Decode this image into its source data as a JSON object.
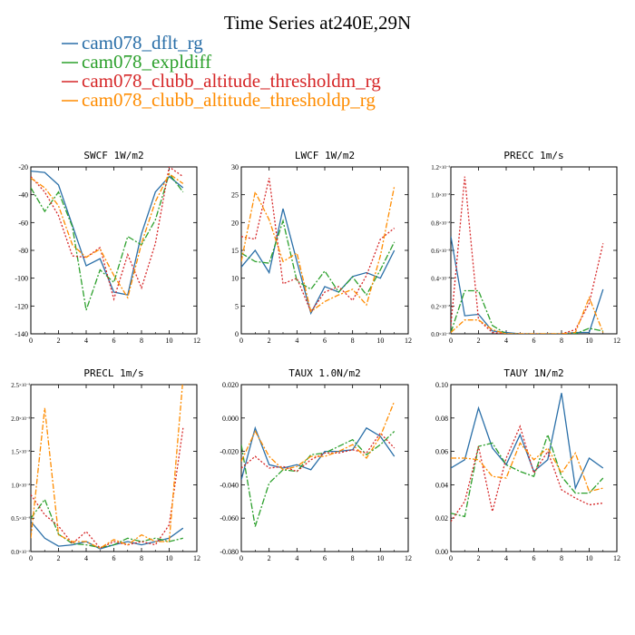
{
  "title": "Time Series at240E,29N",
  "legend": [
    {
      "label": "cam078_dflt_rg",
      "color": "#2a6fa8"
    },
    {
      "label": "cam078_expldiff",
      "color": "#2ca02c"
    },
    {
      "label": "cam078_clubb_altitude_thresholdm_rg",
      "color": "#d62728"
    },
    {
      "label": "cam078_clubb_altitude_thresholdp_rg",
      "color": "#ff8c00"
    }
  ],
  "chart_data": [
    {
      "type": "line",
      "title": "SWCF   1W/m2",
      "x": [
        0,
        1,
        2,
        3,
        4,
        5,
        6,
        7,
        8,
        9,
        10,
        11
      ],
      "xlim": [
        0,
        12
      ],
      "xticks": [
        "0",
        "2",
        "4",
        "6",
        "8",
        "10",
        "12"
      ],
      "ylim": [
        -140,
        -20
      ],
      "yticks": [
        "-140",
        "-120",
        "-100",
        "-80",
        "-60",
        "-40",
        "-20"
      ],
      "series": [
        {
          "values": [
            -23,
            -24,
            -33,
            -62,
            -91,
            -86,
            -110,
            -112,
            -68,
            -38,
            -27,
            -35
          ]
        },
        {
          "values": [
            -35,
            -52,
            -38,
            -63,
            -123,
            -94,
            -103,
            -70,
            -76,
            -58,
            -25,
            -38
          ]
        },
        {
          "values": [
            -27,
            -38,
            -55,
            -84,
            -85,
            -78,
            -115,
            -83,
            -107,
            -75,
            -20,
            -27
          ]
        },
        {
          "values": [
            -28,
            -35,
            -48,
            -76,
            -85,
            -79,
            -98,
            -114,
            -75,
            -45,
            -25,
            -32
          ]
        }
      ]
    },
    {
      "type": "line",
      "title": "LWCF   1W/m2",
      "x": [
        0,
        1,
        2,
        3,
        4,
        5,
        6,
        7,
        8,
        9,
        10,
        11
      ],
      "xlim": [
        0,
        12
      ],
      "xticks": [
        "0",
        "2",
        "4",
        "6",
        "8",
        "10",
        "12"
      ],
      "ylim": [
        0,
        30
      ],
      "yticks": [
        "0",
        "5",
        "10",
        "15",
        "20",
        "25",
        "30"
      ],
      "series": [
        {
          "values": [
            12,
            15,
            11,
            22.5,
            13,
            3.7,
            8.5,
            7.5,
            10.3,
            11,
            10,
            15
          ]
        },
        {
          "values": [
            14.5,
            13,
            12.7,
            20.3,
            9.5,
            8,
            11.3,
            7.5,
            10.2,
            7,
            11.5,
            16.5
          ]
        },
        {
          "values": [
            17.5,
            17,
            28,
            9,
            10,
            4,
            7.5,
            8.5,
            6,
            10.5,
            17,
            19
          ]
        },
        {
          "values": [
            13,
            25.5,
            20.5,
            13,
            14.5,
            4,
            5.8,
            7,
            8,
            5.2,
            14,
            26.5
          ]
        }
      ]
    },
    {
      "type": "line",
      "title": "PRECC   1m/s",
      "x": [
        0,
        1,
        2,
        3,
        4,
        5,
        6,
        7,
        8,
        9,
        10,
        11
      ],
      "xlim": [
        0,
        12
      ],
      "xticks": [
        "0",
        "2",
        "4",
        "6",
        "8",
        "10",
        "12"
      ],
      "ylim": [
        0,
        1.2e-08
      ],
      "yticks": [
        "0.0",
        "0.2",
        "0.4",
        "0.6",
        "0.8",
        "1.0",
        "1.2"
      ],
      "yexp": "×10⁻⁸",
      "series": [
        {
          "values": [
            7e-09,
            1.3e-09,
            1.4e-09,
            2e-10,
            1e-10,
            0,
            0,
            0,
            0,
            1e-10,
            1e-10,
            3.2e-09
          ]
        },
        {
          "values": [
            1e-10,
            3.1e-09,
            3.1e-09,
            6e-10,
            0,
            0,
            0,
            0,
            0,
            0,
            4e-10,
            2e-10
          ]
        },
        {
          "values": [
            6e-10,
            1.13e-08,
            1e-09,
            1e-10,
            0,
            0,
            0,
            0,
            0,
            3e-10,
            2.2e-09,
            6.5e-09
          ]
        },
        {
          "values": [
            1e-10,
            1e-09,
            1e-09,
            3e-10,
            0,
            0,
            0,
            0,
            0,
            1e-10,
            2.6e-09,
            1e-10
          ]
        }
      ]
    },
    {
      "type": "line",
      "title": "PRECL   1m/s",
      "x": [
        0,
        1,
        2,
        3,
        4,
        5,
        6,
        7,
        8,
        9,
        10,
        11
      ],
      "xlim": [
        0,
        12
      ],
      "xticks": [
        "0",
        "2",
        "4",
        "6",
        "8",
        "10",
        "12"
      ],
      "ylim": [
        0,
        2.5e-08
      ],
      "yticks": [
        "0.0",
        "0.5",
        "1.0",
        "1.5",
        "2.0",
        "2.5"
      ],
      "yexp": "×10⁻⁸",
      "series": [
        {
          "values": [
            4.5e-09,
            2e-09,
            8e-10,
            1e-09,
            1.5e-09,
            4e-10,
            1e-09,
            1.5e-09,
            1e-09,
            1.5e-09,
            2e-09,
            3.5e-09
          ]
        },
        {
          "values": [
            5e-09,
            7.8e-09,
            2.6e-09,
            1.2e-09,
            1e-09,
            6e-10,
            1e-09,
            2e-09,
            1.5e-09,
            2e-09,
            1.5e-09,
            2e-09
          ]
        },
        {
          "values": [
            8.5e-09,
            5.5e-09,
            3.8e-09,
            1.2e-09,
            3e-09,
            5e-10,
            1.5e-09,
            1e-09,
            1.5e-09,
            1e-09,
            4e-09,
            1.85e-08
          ]
        },
        {
          "values": [
            2e-09,
            2.15e-08,
            2.5e-09,
            1.5e-09,
            1.5e-09,
            5e-10,
            1.8e-09,
            1e-09,
            2.5e-09,
            1.5e-09,
            1.5e-09,
            2.6e-08
          ]
        }
      ]
    },
    {
      "type": "line",
      "title": "TAUX   1.0N/m2",
      "x": [
        0,
        1,
        2,
        3,
        4,
        5,
        6,
        7,
        8,
        9,
        10,
        11
      ],
      "xlim": [
        0,
        12
      ],
      "xticks": [
        "0",
        "2",
        "4",
        "6",
        "8",
        "10",
        "12"
      ],
      "ylim": [
        -0.08,
        0.02
      ],
      "yticks": [
        "-0.080",
        "-0.060",
        "-0.040",
        "-0.020",
        "0.000",
        "0.020"
      ],
      "series": [
        {
          "values": [
            -0.037,
            -0.006,
            -0.028,
            -0.03,
            -0.028,
            -0.031,
            -0.02,
            -0.02,
            -0.019,
            -0.006,
            -0.011,
            -0.023
          ]
        },
        {
          "values": [
            -0.016,
            -0.065,
            -0.039,
            -0.031,
            -0.032,
            -0.022,
            -0.021,
            -0.017,
            -0.013,
            -0.022,
            -0.016,
            -0.008
          ]
        },
        {
          "values": [
            -0.03,
            -0.023,
            -0.03,
            -0.029,
            -0.032,
            -0.025,
            -0.021,
            -0.021,
            -0.019,
            -0.021,
            -0.009,
            -0.018
          ]
        },
        {
          "values": [
            -0.026,
            -0.008,
            -0.023,
            -0.031,
            -0.029,
            -0.023,
            -0.023,
            -0.02,
            -0.016,
            -0.024,
            -0.011,
            0.01
          ]
        }
      ]
    },
    {
      "type": "line",
      "title": "TAUY   1N/m2",
      "x": [
        0,
        1,
        2,
        3,
        4,
        5,
        6,
        7,
        8,
        9,
        10,
        11
      ],
      "xlim": [
        0,
        12
      ],
      "xticks": [
        "0",
        "2",
        "4",
        "6",
        "8",
        "10",
        "12"
      ],
      "ylim": [
        0,
        0.1
      ],
      "yticks": [
        "0.00",
        "0.02",
        "0.04",
        "0.06",
        "0.08",
        "0.10"
      ],
      "series": [
        {
          "values": [
            0.05,
            0.055,
            0.086,
            0.062,
            0.052,
            0.07,
            0.048,
            0.055,
            0.095,
            0.038,
            0.056,
            0.05
          ]
        },
        {
          "values": [
            0.023,
            0.021,
            0.063,
            0.065,
            0.052,
            0.048,
            0.045,
            0.07,
            0.045,
            0.035,
            0.035,
            0.044
          ]
        },
        {
          "values": [
            0.018,
            0.03,
            0.063,
            0.024,
            0.056,
            0.075,
            0.047,
            0.06,
            0.037,
            0.032,
            0.028,
            0.029
          ]
        },
        {
          "values": [
            0.056,
            0.056,
            0.055,
            0.045,
            0.044,
            0.065,
            0.055,
            0.062,
            0.047,
            0.059,
            0.036,
            0.038
          ]
        }
      ]
    }
  ]
}
